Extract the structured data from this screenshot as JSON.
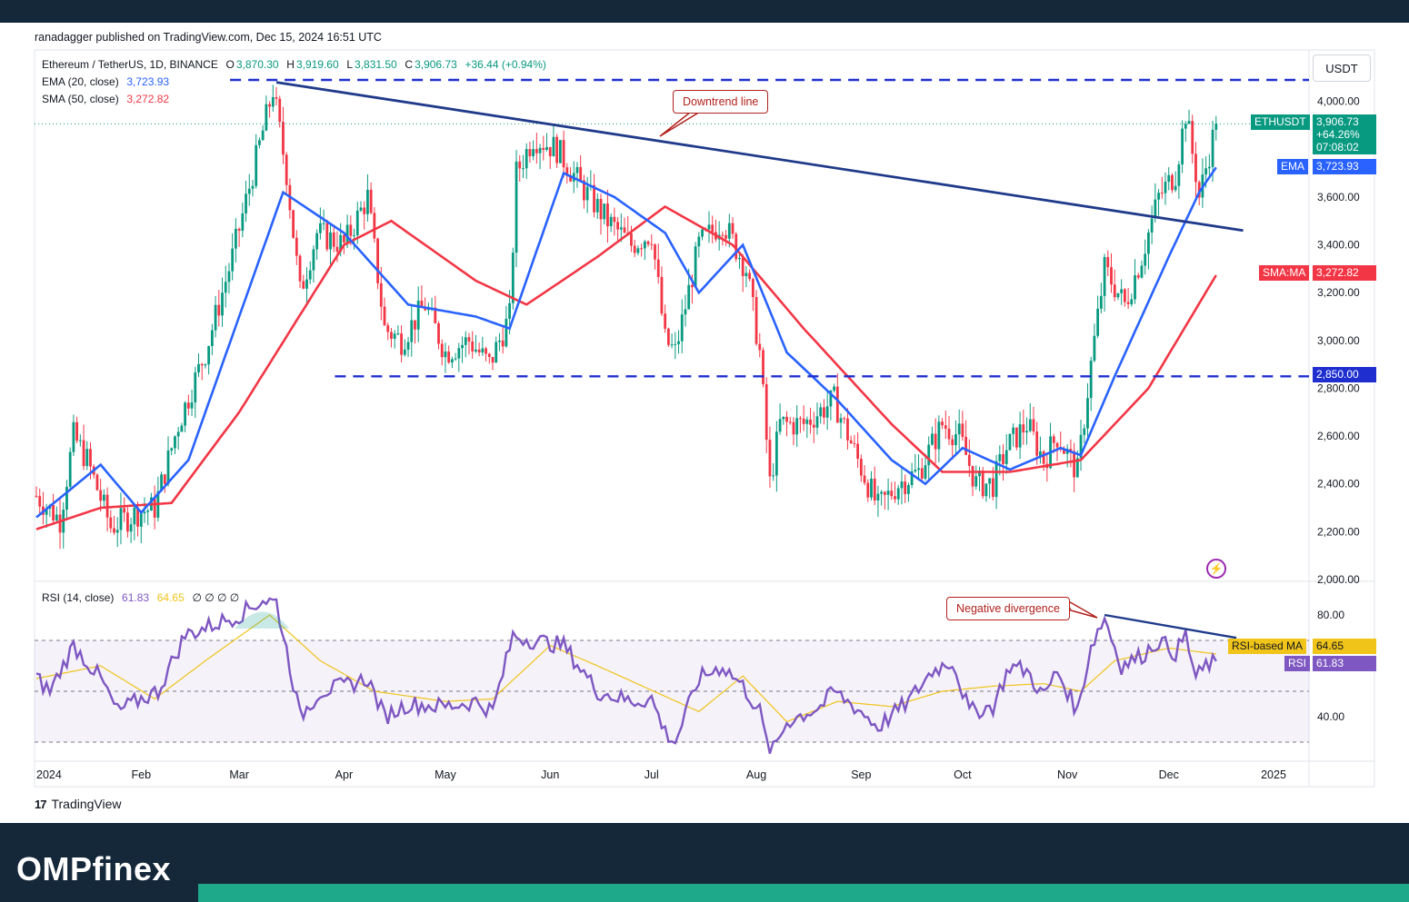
{
  "header": {
    "published": "ranadagger published on TradingView.com, Dec 15, 2024 16:51 UTC"
  },
  "footer": {
    "brand": "OMPfinex",
    "tv": "TradingView",
    "tv_logo": "17"
  },
  "price_legend": {
    "symbol": "Ethereum / TetherUS, 1D, BINANCE",
    "o_label": "O",
    "o": "3,870.30",
    "h_label": "H",
    "h": "3,919.60",
    "l_label": "L",
    "l": "3,831.50",
    "c_label": "C",
    "c": "3,906.73",
    "chg": "+36.44 (+0.94%)",
    "ema_label": "EMA (20, close)",
    "ema": "3,723.93",
    "sma_label": "SMA (50, close)",
    "sma": "3,272.82"
  },
  "rsi_legend": {
    "label": "RSI (14, close)",
    "rsi": "61.83",
    "ma": "64.65",
    "extra": "∅ ∅ ∅ ∅"
  },
  "currency": "USDT",
  "tags": {
    "ethusdt_label": "ETHUSDT",
    "ethusdt_value": "3,906.73",
    "ethusdt_change": "+64.26%",
    "ethusdt_timer": "07:08:02",
    "ema_label": "EMA",
    "ema_value": "3,723.93",
    "sma_label": "SMA:MA",
    "sma_value": "3,272.82",
    "support_value": "2,850.00",
    "rsi_ma_label": "RSI-based MA",
    "rsi_ma_value": "64.65",
    "rsi_label": "RSI",
    "rsi_value": "61.83"
  },
  "annotations": {
    "downtrend": "Downtrend line",
    "divergence": "Negative divergence"
  },
  "colors": {
    "up": "#089981",
    "down": "#f23645",
    "ema": "#2962ff",
    "sma": "#f23645",
    "rsi": "#7e57c2",
    "rsi_ma": "#f0c419",
    "level": "#1f2fcf",
    "trend": "#1f3a8a",
    "navy": "#14283a",
    "teal": "#1fa98b"
  },
  "chart_data": [
    {
      "type": "candlestick",
      "title": "Ethereum / TetherUS, 1D, BINANCE",
      "ylabel": "USDT",
      "ylim": [
        2000,
        4100
      ],
      "y_ticks": [
        "4,000.00",
        "3,800.00",
        "3,600.00",
        "3,400.00",
        "3,200.00",
        "3,000.00",
        "2,800.00",
        "2,600.00",
        "2,400.00",
        "2,200.00",
        "2,000.00"
      ],
      "x_ticks": [
        "2024",
        "Feb",
        "Mar",
        "Apr",
        "May",
        "Jun",
        "Jul",
        "Aug",
        "Sep",
        "Oct",
        "Nov",
        "Dec",
        "2025"
      ],
      "x_range": [
        "2024-01-01",
        "2025-01-01"
      ],
      "close_anchors": [
        [
          "2024-01-01",
          2350
        ],
        [
          "2024-01-08",
          2250
        ],
        [
          "2024-01-12",
          2600
        ],
        [
          "2024-01-16",
          2500
        ],
        [
          "2024-01-23",
          2220
        ],
        [
          "2024-01-31",
          2280
        ],
        [
          "2024-02-05",
          2300
        ],
        [
          "2024-02-12",
          2650
        ],
        [
          "2024-02-20",
          2950
        ],
        [
          "2024-02-28",
          3350
        ],
        [
          "2024-03-05",
          3700
        ],
        [
          "2024-03-11",
          4050
        ],
        [
          "2024-03-15",
          3700
        ],
        [
          "2024-03-19",
          3200
        ],
        [
          "2024-03-24",
          3450
        ],
        [
          "2024-04-01",
          3400
        ],
        [
          "2024-04-08",
          3600
        ],
        [
          "2024-04-13",
          3050
        ],
        [
          "2024-04-18",
          3000
        ],
        [
          "2024-04-25",
          3150
        ],
        [
          "2024-05-01",
          2950
        ],
        [
          "2024-05-08",
          3000
        ],
        [
          "2024-05-14",
          2900
        ],
        [
          "2024-05-20",
          3100
        ],
        [
          "2024-05-22",
          3700
        ],
        [
          "2024-05-27",
          3850
        ],
        [
          "2024-06-03",
          3800
        ],
        [
          "2024-06-10",
          3650
        ],
        [
          "2024-06-18",
          3500
        ],
        [
          "2024-06-25",
          3400
        ],
        [
          "2024-07-01",
          3450
        ],
        [
          "2024-07-05",
          3000
        ],
        [
          "2024-07-08",
          2950
        ],
        [
          "2024-07-15",
          3400
        ],
        [
          "2024-07-22",
          3500
        ],
        [
          "2024-07-29",
          3300
        ],
        [
          "2024-08-02",
          2950
        ],
        [
          "2024-08-05",
          2400
        ],
        [
          "2024-08-08",
          2650
        ],
        [
          "2024-08-15",
          2650
        ],
        [
          "2024-08-24",
          2750
        ],
        [
          "2024-08-31",
          2500
        ],
        [
          "2024-09-06",
          2300
        ],
        [
          "2024-09-12",
          2400
        ],
        [
          "2024-09-18",
          2450
        ],
        [
          "2024-09-25",
          2650
        ],
        [
          "2024-09-30",
          2600
        ],
        [
          "2024-10-05",
          2400
        ],
        [
          "2024-10-10",
          2400
        ],
        [
          "2024-10-14",
          2550
        ],
        [
          "2024-10-20",
          2650
        ],
        [
          "2024-10-25",
          2500
        ],
        [
          "2024-10-29",
          2600
        ],
        [
          "2024-11-04",
          2450
        ],
        [
          "2024-11-08",
          2900
        ],
        [
          "2024-11-12",
          3300
        ],
        [
          "2024-11-18",
          3150
        ],
        [
          "2024-11-23",
          3350
        ],
        [
          "2024-11-28",
          3600
        ],
        [
          "2024-12-03",
          3700
        ],
        [
          "2024-12-06",
          3950
        ],
        [
          "2024-12-09",
          3700
        ],
        [
          "2024-12-10",
          3600
        ],
        [
          "2024-12-15",
          3906.73
        ]
      ],
      "ema20": [
        [
          "2024-01-01",
          2260
        ],
        [
          "2024-01-20",
          2480
        ],
        [
          "2024-02-01",
          2280
        ],
        [
          "2024-02-15",
          2500
        ],
        [
          "2024-03-01",
          3100
        ],
        [
          "2024-03-14",
          3620
        ],
        [
          "2024-04-01",
          3450
        ],
        [
          "2024-04-20",
          3150
        ],
        [
          "2024-05-10",
          3100
        ],
        [
          "2024-05-20",
          3050
        ],
        [
          "2024-06-05",
          3700
        ],
        [
          "2024-06-20",
          3600
        ],
        [
          "2024-07-05",
          3450
        ],
        [
          "2024-07-15",
          3200
        ],
        [
          "2024-07-28",
          3400
        ],
        [
          "2024-08-10",
          2950
        ],
        [
          "2024-08-25",
          2750
        ],
        [
          "2024-09-10",
          2500
        ],
        [
          "2024-09-20",
          2400
        ],
        [
          "2024-10-01",
          2550
        ],
        [
          "2024-10-15",
          2460
        ],
        [
          "2024-10-30",
          2550
        ],
        [
          "2024-11-05",
          2520
        ],
        [
          "2024-11-15",
          2850
        ],
        [
          "2024-12-01",
          3350
        ],
        [
          "2024-12-10",
          3620
        ],
        [
          "2024-12-15",
          3723.93
        ]
      ],
      "sma50": [
        [
          "2024-01-01",
          2210
        ],
        [
          "2024-01-20",
          2300
        ],
        [
          "2024-02-10",
          2320
        ],
        [
          "2024-03-01",
          2700
        ],
        [
          "2024-04-01",
          3400
        ],
        [
          "2024-04-15",
          3500
        ],
        [
          "2024-05-10",
          3250
        ],
        [
          "2024-05-25",
          3150
        ],
        [
          "2024-06-15",
          3350
        ],
        [
          "2024-07-05",
          3560
        ],
        [
          "2024-07-25",
          3400
        ],
        [
          "2024-08-15",
          3050
        ],
        [
          "2024-09-10",
          2650
        ],
        [
          "2024-09-25",
          2450
        ],
        [
          "2024-10-15",
          2450
        ],
        [
          "2024-11-05",
          2500
        ],
        [
          "2024-11-25",
          2800
        ],
        [
          "2024-12-15",
          3272.82
        ]
      ],
      "horizontal_levels": [
        {
          "value": 4090,
          "from": "2024-03-01",
          "to": "2025-01-01",
          "style": "dashed"
        },
        {
          "value": 2850,
          "label": "2,850.00",
          "from": "2024-04-01",
          "to": "2025-01-01",
          "style": "dashed"
        }
      ],
      "trend_line": {
        "from": [
          "2024-03-12",
          4080
        ],
        "to": [
          "2024-12-23",
          3460
        ],
        "label": "Downtrend line"
      },
      "last": {
        "close": 3906.73,
        "ema": 3723.93,
        "sma": 3272.82
      }
    },
    {
      "type": "line",
      "title": "RSI (14, close)",
      "ylim": [
        25,
        92
      ],
      "y_ticks": [
        "80.00",
        "40.00"
      ],
      "band": [
        30,
        70
      ],
      "middle": 50,
      "series": [
        {
          "name": "RSI",
          "points": [
            [
              "2024-01-01",
              55
            ],
            [
              "2024-01-05",
              50
            ],
            [
              "2024-01-12",
              68
            ],
            [
              "2024-01-20",
              55
            ],
            [
              "2024-01-25",
              42
            ],
            [
              "2024-02-01",
              47
            ],
            [
              "2024-02-06",
              50
            ],
            [
              "2024-02-14",
              72
            ],
            [
              "2024-02-22",
              76
            ],
            [
              "2024-03-01",
              80
            ],
            [
              "2024-03-08",
              86
            ],
            [
              "2024-03-12",
              85
            ],
            [
              "2024-03-16",
              60
            ],
            [
              "2024-03-19",
              40
            ],
            [
              "2024-03-25",
              50
            ],
            [
              "2024-04-01",
              52
            ],
            [
              "2024-04-08",
              55
            ],
            [
              "2024-04-13",
              40
            ],
            [
              "2024-04-20",
              45
            ],
            [
              "2024-05-01",
              44
            ],
            [
              "2024-05-10",
              46
            ],
            [
              "2024-05-15",
              42
            ],
            [
              "2024-05-21",
              72
            ],
            [
              "2024-05-27",
              70
            ],
            [
              "2024-06-05",
              68
            ],
            [
              "2024-06-15",
              50
            ],
            [
              "2024-06-25",
              46
            ],
            [
              "2024-07-01",
              47
            ],
            [
              "2024-07-05",
              34
            ],
            [
              "2024-07-08",
              30
            ],
            [
              "2024-07-15",
              55
            ],
            [
              "2024-07-22",
              60
            ],
            [
              "2024-07-28",
              52
            ],
            [
              "2024-08-02",
              42
            ],
            [
              "2024-08-05",
              24
            ],
            [
              "2024-08-10",
              38
            ],
            [
              "2024-08-20",
              44
            ],
            [
              "2024-08-24",
              50
            ],
            [
              "2024-09-01",
              42
            ],
            [
              "2024-09-06",
              36
            ],
            [
              "2024-09-15",
              46
            ],
            [
              "2024-09-22",
              58
            ],
            [
              "2024-09-28",
              62
            ],
            [
              "2024-10-03",
              42
            ],
            [
              "2024-10-10",
              44
            ],
            [
              "2024-10-15",
              60
            ],
            [
              "2024-10-20",
              58
            ],
            [
              "2024-10-25",
              48
            ],
            [
              "2024-10-29",
              58
            ],
            [
              "2024-11-04",
              42
            ],
            [
              "2024-11-08",
              68
            ],
            [
              "2024-11-12",
              79
            ],
            [
              "2024-11-17",
              60
            ],
            [
              "2024-11-23",
              64
            ],
            [
              "2024-11-28",
              70
            ],
            [
              "2024-12-03",
              65
            ],
            [
              "2024-12-06",
              72
            ],
            [
              "2024-12-09",
              55
            ],
            [
              "2024-12-12",
              60
            ],
            [
              "2024-12-15",
              61.83
            ]
          ]
        },
        {
          "name": "RSI-based MA",
          "points": [
            [
              "2024-01-01",
              55
            ],
            [
              "2024-01-20",
              60
            ],
            [
              "2024-02-05",
              47
            ],
            [
              "2024-02-20",
              62
            ],
            [
              "2024-03-10",
              80
            ],
            [
              "2024-03-25",
              62
            ],
            [
              "2024-04-10",
              50
            ],
            [
              "2024-05-01",
              46
            ],
            [
              "2024-05-15",
              47
            ],
            [
              "2024-06-01",
              68
            ],
            [
              "2024-06-15",
              60
            ],
            [
              "2024-07-05",
              48
            ],
            [
              "2024-07-15",
              42
            ],
            [
              "2024-07-28",
              56
            ],
            [
              "2024-08-10",
              38
            ],
            [
              "2024-08-25",
              46
            ],
            [
              "2024-09-10",
              44
            ],
            [
              "2024-09-25",
              50
            ],
            [
              "2024-10-10",
              52
            ],
            [
              "2024-10-25",
              53
            ],
            [
              "2024-11-05",
              50
            ],
            [
              "2024-11-15",
              62
            ],
            [
              "2024-12-01",
              67
            ],
            [
              "2024-12-15",
              64.65
            ]
          ]
        }
      ],
      "divergence_line": {
        "from": [
          "2024-11-12",
          80
        ],
        "to": [
          "2024-12-21",
          71
        ],
        "label": "Negative divergence"
      }
    }
  ]
}
